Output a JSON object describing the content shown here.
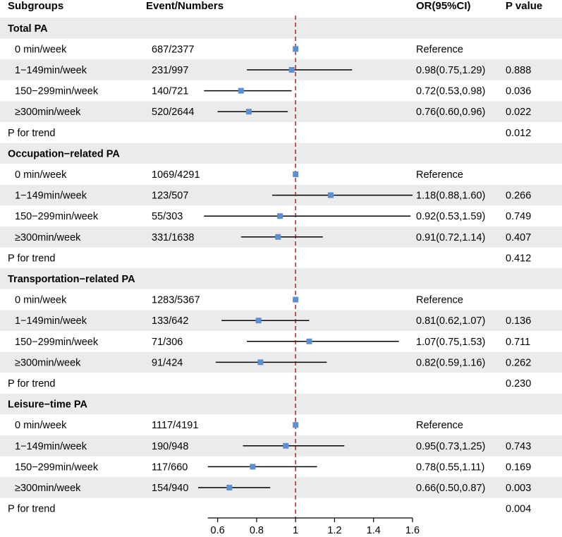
{
  "chart_data": {
    "type": "forest",
    "title": "",
    "columns": {
      "subgroup": "Subgroups",
      "events": "Event/Numbers",
      "or": "OR(95%CI)",
      "p": "P value"
    },
    "reference_line": 1,
    "x_axis": {
      "range": [
        0.5,
        1.6
      ],
      "ticks": [
        "0.6",
        "0.8",
        "1",
        "1.2",
        "1.4",
        "1.6"
      ],
      "tick_values": [
        0.6,
        0.8,
        1.0,
        1.2,
        1.4,
        1.6
      ]
    },
    "colors": {
      "point": "#5b8fd0",
      "line": "#000000",
      "reference": "#d62728",
      "shade": "#ebebeb"
    },
    "groups": [
      {
        "name": "Total PA",
        "rows": [
          {
            "label": "0 min/week",
            "events": "687/2377",
            "or_text": "Reference",
            "p": "",
            "est": 1.0,
            "lo": null,
            "hi": null
          },
          {
            "label": "1−149min/week",
            "events": "231/997",
            "or_text": "0.98(0.75,1.29)",
            "p": "0.888",
            "est": 0.98,
            "lo": 0.75,
            "hi": 1.29
          },
          {
            "label": "150−299min/week",
            "events": "140/721",
            "or_text": "0.72(0.53,0.98)",
            "p": "0.036",
            "est": 0.72,
            "lo": 0.53,
            "hi": 0.98
          },
          {
            "label": "≥300min/week",
            "events": "520/2644",
            "or_text": "0.76(0.60,0.96)",
            "p": "0.022",
            "est": 0.76,
            "lo": 0.6,
            "hi": 0.96
          }
        ],
        "trend_label": "P for trend",
        "trend_p": "0.012"
      },
      {
        "name": "Occupation−related PA",
        "rows": [
          {
            "label": "0 min/week",
            "events": "1069/4291",
            "or_text": "Reference",
            "p": "",
            "est": 1.0,
            "lo": null,
            "hi": null
          },
          {
            "label": "1−149min/week",
            "events": "123/507",
            "or_text": "1.18(0.88,1.60)",
            "p": "0.266",
            "est": 1.18,
            "lo": 0.88,
            "hi": 1.6
          },
          {
            "label": "150−299min/week",
            "events": "55/303",
            "or_text": "0.92(0.53,1.59)",
            "p": "0.749",
            "est": 0.92,
            "lo": 0.53,
            "hi": 1.59
          },
          {
            "label": "≥300min/week",
            "events": "331/1638",
            "or_text": "0.91(0.72,1.14)",
            "p": "0.407",
            "est": 0.91,
            "lo": 0.72,
            "hi": 1.14
          }
        ],
        "trend_label": "P for trend",
        "trend_p": "0.412"
      },
      {
        "name": "Transportation−related PA",
        "rows": [
          {
            "label": "0 min/week",
            "events": "1283/5367",
            "or_text": "Reference",
            "p": "",
            "est": 1.0,
            "lo": null,
            "hi": null
          },
          {
            "label": "1−149min/week",
            "events": "133/642",
            "or_text": "0.81(0.62,1.07)",
            "p": "0.136",
            "est": 0.81,
            "lo": 0.62,
            "hi": 1.07
          },
          {
            "label": "150−299min/week",
            "events": "71/306",
            "or_text": "1.07(0.75,1.53)",
            "p": "0.711",
            "est": 1.07,
            "lo": 0.75,
            "hi": 1.53
          },
          {
            "label": "≥300min/week",
            "events": "91/424",
            "or_text": "0.82(0.59,1.16)",
            "p": "0.262",
            "est": 0.82,
            "lo": 0.59,
            "hi": 1.16
          }
        ],
        "trend_label": "P for trend",
        "trend_p": "0.230"
      },
      {
        "name": "Leisure−time PA",
        "rows": [
          {
            "label": "0 min/week",
            "events": "1117/4191",
            "or_text": "Reference",
            "p": "",
            "est": 1.0,
            "lo": null,
            "hi": null
          },
          {
            "label": "1−149min/week",
            "events": "190/948",
            "or_text": "0.95(0.73,1.25)",
            "p": "0.743",
            "est": 0.95,
            "lo": 0.73,
            "hi": 1.25
          },
          {
            "label": "150−299min/week",
            "events": "117/660",
            "or_text": "0.78(0.55,1.11)",
            "p": "0.169",
            "est": 0.78,
            "lo": 0.55,
            "hi": 1.11
          },
          {
            "label": "≥300min/week",
            "events": "154/940",
            "or_text": "0.66(0.50,0.87)",
            "p": "0.003",
            "est": 0.66,
            "lo": 0.5,
            "hi": 0.87
          }
        ],
        "trend_label": "P for trend",
        "trend_p": "0.004"
      }
    ]
  }
}
